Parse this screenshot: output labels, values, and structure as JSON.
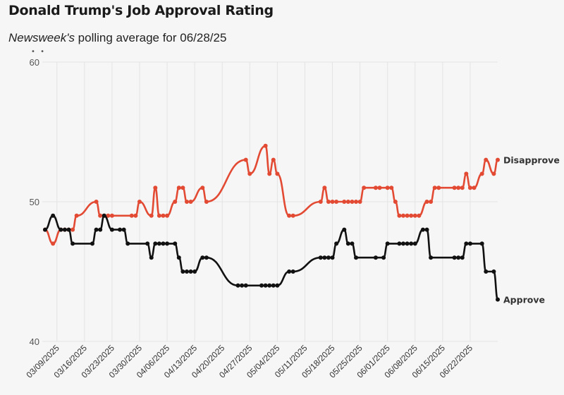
{
  "header": {
    "title": "Donald Trump's Job Approval Rating",
    "subtitle_italic": "Newsweek's",
    "subtitle_rest": " polling average for 06/28/25"
  },
  "colors": {
    "disapprove": "#e34a33",
    "approve": "#111111",
    "grid": "#e4e4e4",
    "axis_text": "#555555"
  },
  "chart_data": {
    "type": "line",
    "title": "Donald Trump's Job Approval Rating",
    "subtitle": "Newsweek's polling average for 06/28/25",
    "ylim": [
      40,
      60
    ],
    "yticks": [
      40,
      50,
      60
    ],
    "xlim": [
      "2025-03-06",
      "2025-06-29"
    ],
    "xticks": [
      "03/09/2025",
      "03/16/2025",
      "03/23/2025",
      "03/30/2025",
      "04/06/2025",
      "04/13/2025",
      "04/20/2025",
      "04/27/2025",
      "05/04/2025",
      "05/11/2025",
      "05/18/2025",
      "05/25/2025",
      "06/01/2025",
      "06/08/2025",
      "06/15/2025",
      "06/22/2025"
    ],
    "grid": true,
    "legend": "end-of-line labels",
    "series": [
      {
        "name": "Disapprove",
        "color": "#e34a33",
        "points": [
          [
            "2025-03-06",
            48
          ],
          [
            "2025-03-08",
            47
          ],
          [
            "2025-03-10",
            48
          ],
          [
            "2025-03-11",
            48
          ],
          [
            "2025-03-12",
            48
          ],
          [
            "2025-03-13",
            48
          ],
          [
            "2025-03-14",
            49
          ],
          [
            "2025-03-19",
            50
          ],
          [
            "2025-03-20",
            49
          ],
          [
            "2025-03-21",
            49
          ],
          [
            "2025-03-22",
            49
          ],
          [
            "2025-03-23",
            49
          ],
          [
            "2025-03-28",
            49
          ],
          [
            "2025-03-29",
            49
          ],
          [
            "2025-03-30",
            50
          ],
          [
            "2025-04-02",
            49
          ],
          [
            "2025-04-03",
            51
          ],
          [
            "2025-04-04",
            49
          ],
          [
            "2025-04-05",
            49
          ],
          [
            "2025-04-06",
            49
          ],
          [
            "2025-04-08",
            50
          ],
          [
            "2025-04-09",
            51
          ],
          [
            "2025-04-10",
            51
          ],
          [
            "2025-04-11",
            50
          ],
          [
            "2025-04-12",
            50
          ],
          [
            "2025-04-15",
            51
          ],
          [
            "2025-04-16",
            50
          ],
          [
            "2025-04-26",
            53
          ],
          [
            "2025-04-27",
            52
          ],
          [
            "2025-05-01",
            54
          ],
          [
            "2025-05-02",
            52
          ],
          [
            "2025-05-03",
            53
          ],
          [
            "2025-05-04",
            52
          ],
          [
            "2025-05-07",
            49
          ],
          [
            "2025-05-08",
            49
          ],
          [
            "2025-05-15",
            50
          ],
          [
            "2025-05-16",
            51
          ],
          [
            "2025-05-17",
            50
          ],
          [
            "2025-05-18",
            50
          ],
          [
            "2025-05-19",
            50
          ],
          [
            "2025-05-21",
            50
          ],
          [
            "2025-05-22",
            50
          ],
          [
            "2025-05-23",
            50
          ],
          [
            "2025-05-24",
            50
          ],
          [
            "2025-05-25",
            50
          ],
          [
            "2025-05-26",
            51
          ],
          [
            "2025-05-29",
            51
          ],
          [
            "2025-05-30",
            51
          ],
          [
            "2025-06-01",
            51
          ],
          [
            "2025-06-02",
            51
          ],
          [
            "2025-06-03",
            50
          ],
          [
            "2025-06-04",
            49
          ],
          [
            "2025-06-05",
            49
          ],
          [
            "2025-06-06",
            49
          ],
          [
            "2025-06-07",
            49
          ],
          [
            "2025-06-08",
            49
          ],
          [
            "2025-06-09",
            49
          ],
          [
            "2025-06-11",
            50
          ],
          [
            "2025-06-12",
            50
          ],
          [
            "2025-06-13",
            51
          ],
          [
            "2025-06-14",
            51
          ],
          [
            "2025-06-18",
            51
          ],
          [
            "2025-06-19",
            51
          ],
          [
            "2025-06-20",
            51
          ],
          [
            "2025-06-21",
            52
          ],
          [
            "2025-06-22",
            51
          ],
          [
            "2025-06-23",
            51
          ],
          [
            "2025-06-25",
            52
          ],
          [
            "2025-06-26",
            53
          ],
          [
            "2025-06-28",
            52
          ],
          [
            "2025-06-29",
            53
          ]
        ]
      },
      {
        "name": "Approve",
        "color": "#111111",
        "points": [
          [
            "2025-03-06",
            48
          ],
          [
            "2025-03-08",
            49
          ],
          [
            "2025-03-10",
            48
          ],
          [
            "2025-03-11",
            48
          ],
          [
            "2025-03-12",
            48
          ],
          [
            "2025-03-13",
            47
          ],
          [
            "2025-03-18",
            47
          ],
          [
            "2025-03-19",
            48
          ],
          [
            "2025-03-20",
            48
          ],
          [
            "2025-03-21",
            49
          ],
          [
            "2025-03-23",
            48
          ],
          [
            "2025-03-25",
            48
          ],
          [
            "2025-03-26",
            48
          ],
          [
            "2025-03-27",
            47
          ],
          [
            "2025-04-01",
            47
          ],
          [
            "2025-04-02",
            46
          ],
          [
            "2025-04-03",
            47
          ],
          [
            "2025-04-04",
            47
          ],
          [
            "2025-04-05",
            47
          ],
          [
            "2025-04-06",
            47
          ],
          [
            "2025-04-08",
            47
          ],
          [
            "2025-04-09",
            46
          ],
          [
            "2025-04-10",
            45
          ],
          [
            "2025-04-11",
            45
          ],
          [
            "2025-04-12",
            45
          ],
          [
            "2025-04-13",
            45
          ],
          [
            "2025-04-15",
            46
          ],
          [
            "2025-04-16",
            46
          ],
          [
            "2025-04-24",
            44
          ],
          [
            "2025-04-25",
            44
          ],
          [
            "2025-04-26",
            44
          ],
          [
            "2025-04-30",
            44
          ],
          [
            "2025-05-01",
            44
          ],
          [
            "2025-05-02",
            44
          ],
          [
            "2025-05-03",
            44
          ],
          [
            "2025-05-04",
            44
          ],
          [
            "2025-05-07",
            45
          ],
          [
            "2025-05-08",
            45
          ],
          [
            "2025-05-15",
            46
          ],
          [
            "2025-05-16",
            46
          ],
          [
            "2025-05-17",
            46
          ],
          [
            "2025-05-18",
            46
          ],
          [
            "2025-05-19",
            47
          ],
          [
            "2025-05-21",
            48
          ],
          [
            "2025-05-22",
            47
          ],
          [
            "2025-05-23",
            47
          ],
          [
            "2025-05-24",
            46
          ],
          [
            "2025-05-29",
            46
          ],
          [
            "2025-05-31",
            46
          ],
          [
            "2025-06-01",
            47
          ],
          [
            "2025-06-04",
            47
          ],
          [
            "2025-06-05",
            47
          ],
          [
            "2025-06-06",
            47
          ],
          [
            "2025-06-07",
            47
          ],
          [
            "2025-06-08",
            47
          ],
          [
            "2025-06-10",
            48
          ],
          [
            "2025-06-11",
            48
          ],
          [
            "2025-06-12",
            46
          ],
          [
            "2025-06-18",
            46
          ],
          [
            "2025-06-19",
            46
          ],
          [
            "2025-06-20",
            46
          ],
          [
            "2025-06-21",
            47
          ],
          [
            "2025-06-22",
            47
          ],
          [
            "2025-06-25",
            47
          ],
          [
            "2025-06-26",
            45
          ],
          [
            "2025-06-28",
            45
          ],
          [
            "2025-06-29",
            43
          ]
        ]
      }
    ]
  }
}
